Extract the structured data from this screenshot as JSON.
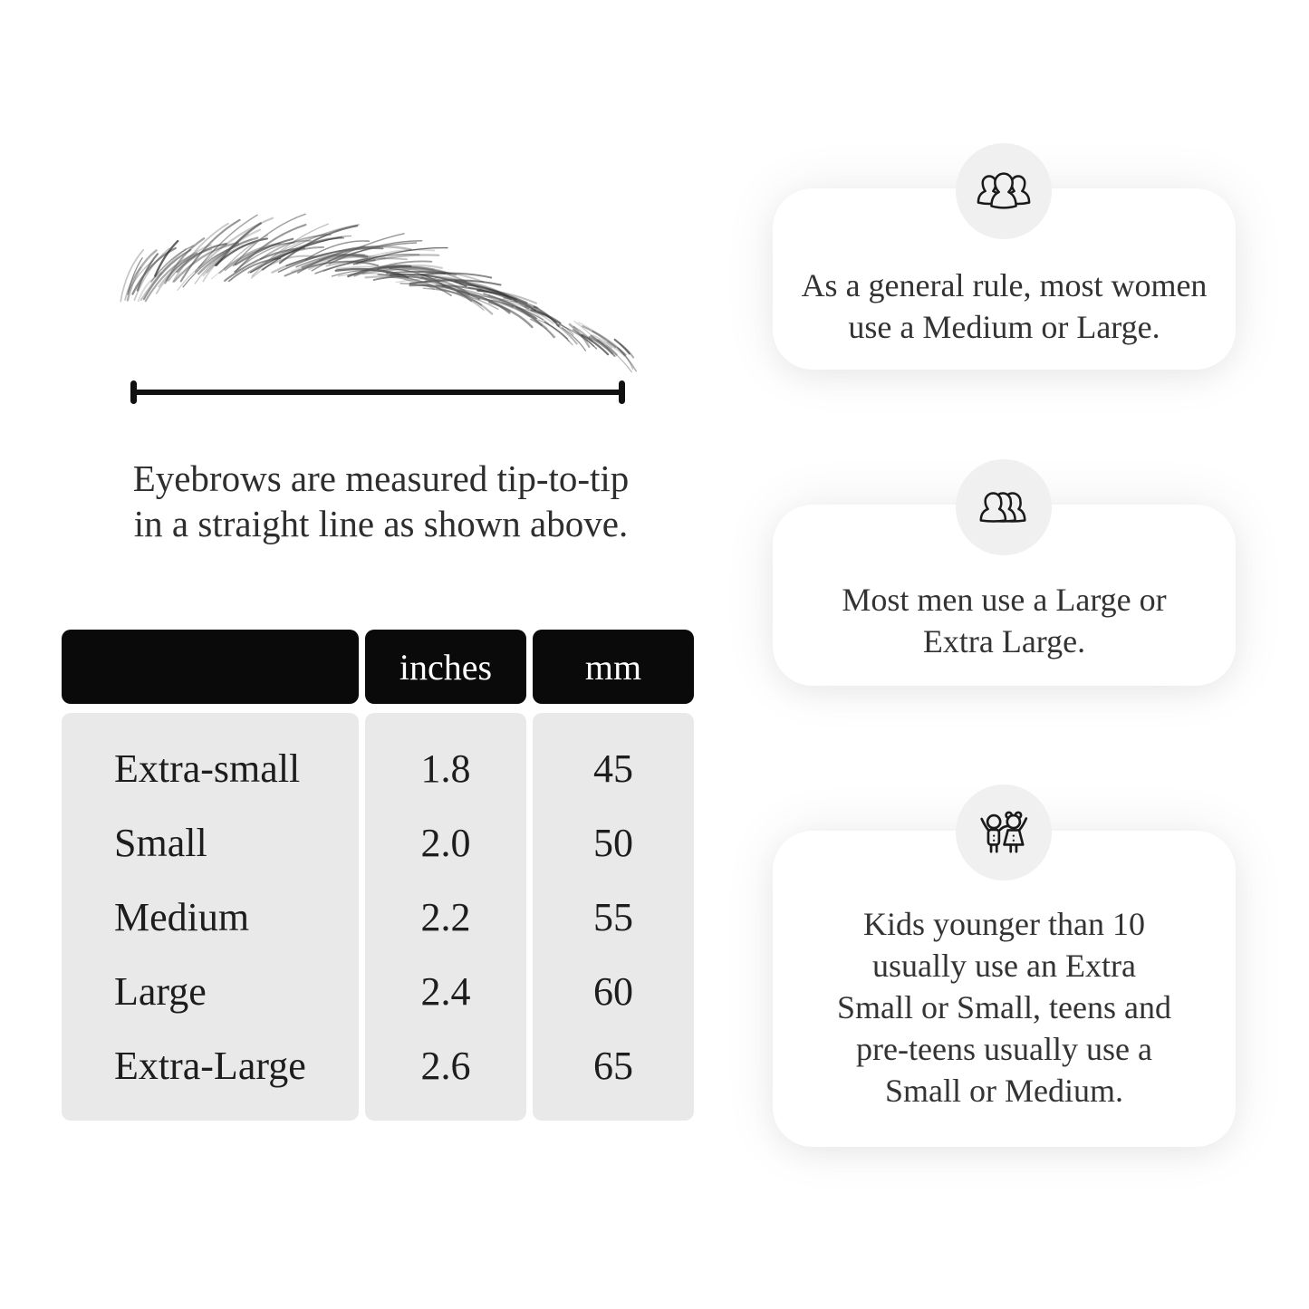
{
  "colors": {
    "header_bg": "#0a0a0a",
    "header_text": "#ffffff",
    "table_body_bg": "#e9e9e9",
    "icon_circle_bg": "#f0f0f0",
    "card_bg": "#ffffff",
    "line_color": "#111111",
    "text_color": "#2b2b2b"
  },
  "measurement": {
    "illustration": "eyebrow-sketch",
    "line_icon": "tip-to-tip-measure-line",
    "caption_lines": [
      "Eyebrows are measured tip-to-tip",
      "in a straight line as shown above."
    ]
  },
  "size_table": {
    "headers": [
      "",
      "inches",
      "mm"
    ],
    "rows": [
      {
        "label": "Extra-small",
        "inches": "1.8",
        "mm": "45"
      },
      {
        "label": "Small",
        "inches": "2.0",
        "mm": "50"
      },
      {
        "label": "Medium",
        "inches": "2.2",
        "mm": "55"
      },
      {
        "label": "Large",
        "inches": "2.4",
        "mm": "60"
      },
      {
        "label": "Extra-Large",
        "inches": "2.6",
        "mm": "65"
      }
    ]
  },
  "cards": [
    {
      "icon": "women-group-icon",
      "lines": [
        "As a general rule, most women",
        "use a Medium or Large."
      ]
    },
    {
      "icon": "men-group-icon",
      "lines": [
        "Most men use a Large or",
        "Extra Large."
      ]
    },
    {
      "icon": "kids-icon",
      "lines": [
        "Kids younger than 10",
        "usually use an Extra",
        "Small or Small, teens and",
        "pre-teens usually use a",
        "Small or Medium."
      ]
    }
  ]
}
